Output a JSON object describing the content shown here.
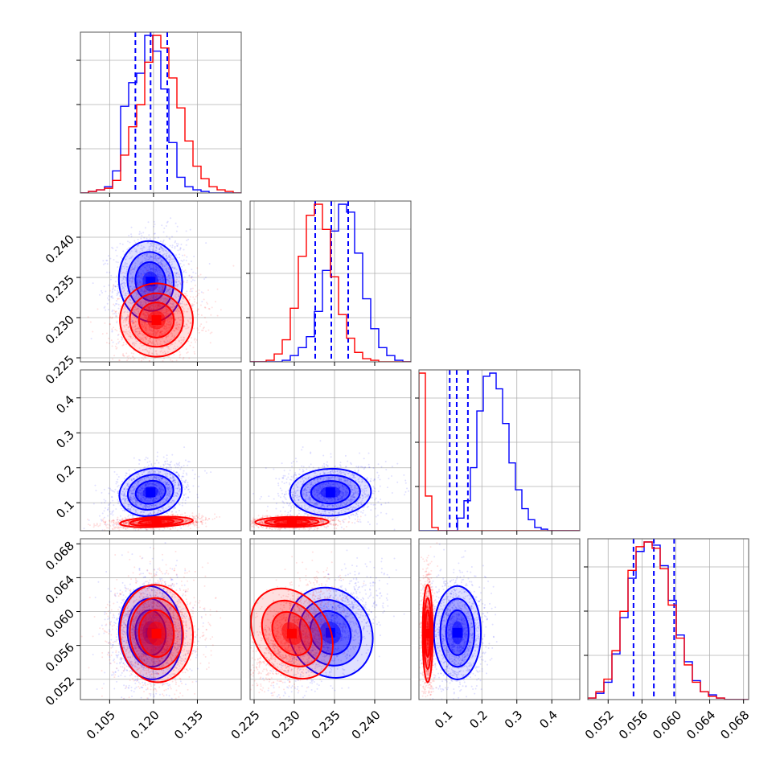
{
  "chart_data": {
    "type": "corner",
    "title": "",
    "variables": [
      {
        "range": [
          0.095,
          0.15
        ],
        "ticks": [
          "0.105",
          "0.120",
          "0.135"
        ],
        "tick_values": [
          0.105,
          0.12,
          0.135
        ]
      },
      {
        "range": [
          0.2245,
          0.2445
        ],
        "ticks": [
          "0.225",
          "0.230",
          "0.235",
          "0.240"
        ],
        "tick_values": [
          0.225,
          0.23,
          0.235,
          0.24
        ]
      },
      {
        "range": [
          0.02,
          0.48
        ],
        "ticks": [
          "0.1",
          "0.2",
          "0.3",
          "0.4"
        ],
        "tick_values": [
          0.1,
          0.2,
          0.3,
          0.4
        ]
      },
      {
        "range": [
          0.0496,
          0.0686
        ],
        "ticks": [
          "0.052",
          "0.056",
          "0.060",
          "0.064",
          "0.068"
        ],
        "tick_values": [
          0.052,
          0.056,
          0.06,
          0.064,
          0.068
        ]
      }
    ],
    "series": [
      {
        "color": "#0000ff",
        "means": [
          0.119,
          0.2345,
          0.13,
          0.0575
        ],
        "stds": [
          0.0045,
          0.0021,
          0.028,
          0.0023
        ],
        "quantiles": [
          [
            0.1138,
            0.119,
            0.1247
          ],
          [
            0.2326,
            0.2346,
            0.2367
          ],
          [
            0.108,
            0.128,
            0.16
          ],
          [
            0.055,
            0.0574,
            0.0598
          ]
        ],
        "hist": [
          [
            0,
            1,
            2,
            4,
            14,
            55,
            70,
            76,
            100,
            90,
            66,
            32,
            10,
            4,
            2,
            1,
            0,
            0,
            0,
            0
          ],
          [
            0,
            0,
            0,
            0,
            1,
            4,
            9,
            16,
            32,
            58,
            83,
            100,
            95,
            69,
            40,
            21,
            9,
            4,
            1,
            0
          ],
          [
            0,
            0,
            0,
            0,
            0,
            0,
            8,
            19,
            40,
            76,
            98,
            100,
            90,
            68,
            43,
            26,
            14,
            7,
            2,
            1,
            0,
            0,
            0,
            0,
            0
          ],
          [
            1,
            4,
            11,
            29,
            52,
            77,
            94,
            100,
            98,
            85,
            63,
            41,
            24,
            12,
            5,
            3,
            1,
            0,
            0,
            0
          ]
        ]
      },
      {
        "color": "#ff0000",
        "means": [
          0.121,
          0.2297,
          0.045,
          0.0574
        ],
        "stds": [
          0.0052,
          0.0019,
          0.006,
          0.0024
        ],
        "quantiles": [],
        "hist": [
          [
            0,
            1,
            2,
            3,
            8,
            24,
            42,
            56,
            83,
            100,
            92,
            73,
            54,
            33,
            17,
            9,
            4,
            2,
            1,
            0
          ],
          [
            0,
            0,
            1,
            5,
            14,
            34,
            67,
            93,
            100,
            84,
            54,
            30,
            15,
            6,
            2,
            1,
            0,
            0,
            0,
            0
          ],
          [
            100,
            22,
            2,
            0,
            0,
            0,
            0,
            0,
            0,
            0,
            0,
            0,
            0,
            0,
            0,
            0,
            0,
            0,
            0,
            0,
            0,
            0,
            0,
            0,
            0
          ],
          [
            1,
            5,
            13,
            31,
            56,
            82,
            97,
            100,
            96,
            83,
            60,
            39,
            22,
            11,
            5,
            2,
            1,
            0,
            0,
            0
          ]
        ]
      }
    ],
    "correlations": [
      [
        0,
        1,
        0.1
      ],
      [
        0,
        2,
        0.35
      ],
      [
        1,
        2,
        0.05
      ],
      [
        0,
        3,
        0.05
      ],
      [
        1,
        3,
        0.6
      ],
      [
        2,
        3,
        0.0
      ]
    ],
    "grid": true,
    "quantile_line_style": "dashed"
  }
}
